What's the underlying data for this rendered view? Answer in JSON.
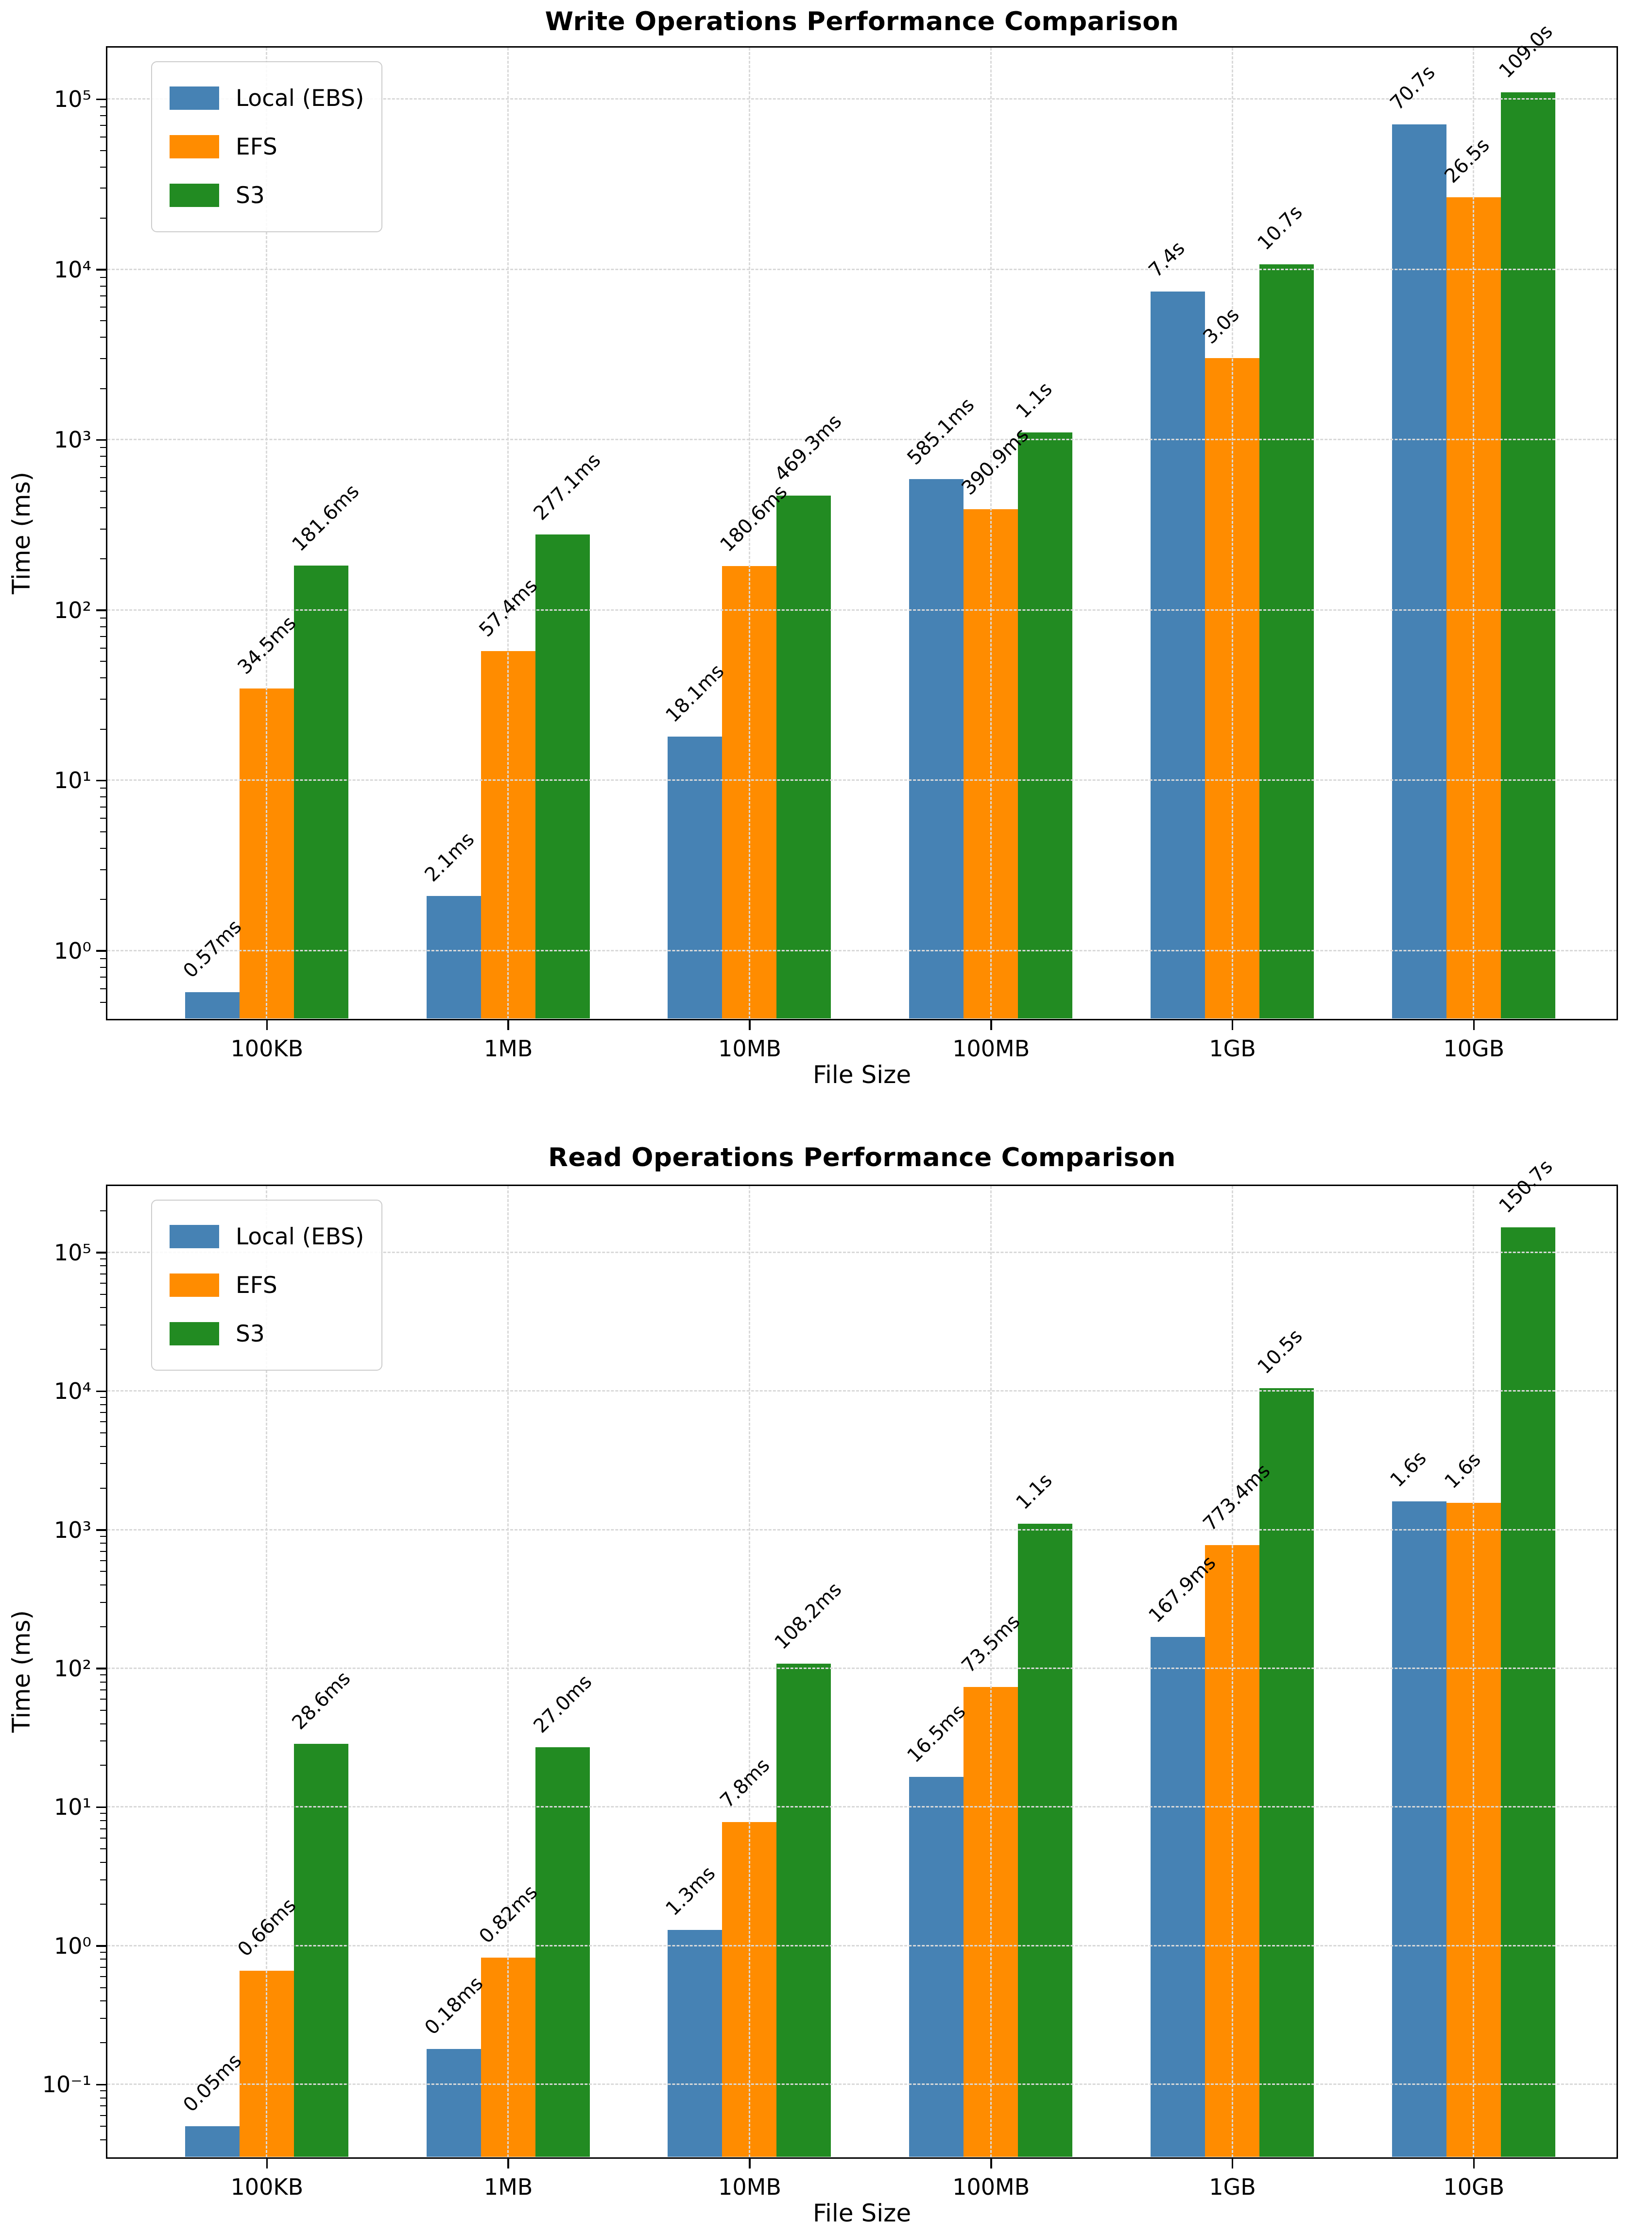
{
  "chart_data": [
    {
      "type": "bar",
      "title": "Write Operations Performance Comparison",
      "xlabel": "File Size",
      "ylabel": "Time (ms)",
      "yscale": "log",
      "grid": true,
      "legend_position": "upper left",
      "categories": [
        "100KB",
        "1MB",
        "10MB",
        "100MB",
        "1GB",
        "10GB"
      ],
      "series": [
        {
          "name": "Local (EBS)",
          "color": "#4682B4",
          "values": [
            0.57,
            2.1,
            18.1,
            585.1,
            7400,
            70700
          ],
          "labels": [
            "0.57ms",
            "2.1ms",
            "18.1ms",
            "585.1ms",
            "7.4s",
            "70.7s"
          ]
        },
        {
          "name": "EFS",
          "color": "#FF8C00",
          "values": [
            34.5,
            57.4,
            180.6,
            390.9,
            3000,
            26500
          ],
          "labels": [
            "34.5ms",
            "57.4ms",
            "180.6ms",
            "390.9ms",
            "3.0s",
            "26.5s"
          ]
        },
        {
          "name": "S3",
          "color": "#228B22",
          "values": [
            181.6,
            277.1,
            469.3,
            1100,
            10700,
            109000
          ],
          "labels": [
            "181.6ms",
            "277.1ms",
            "469.3ms",
            "1.1s",
            "10.7s",
            "109.0s"
          ]
        }
      ],
      "ylim": [
        0.4,
        200000
      ],
      "yticks": [
        1,
        10,
        100,
        1000,
        10000,
        100000
      ],
      "ytick_labels": [
        "10⁰",
        "10¹",
        "10²",
        "10³",
        "10⁴",
        "10⁵"
      ]
    },
    {
      "type": "bar",
      "title": "Read Operations Performance Comparison",
      "xlabel": "File Size",
      "ylabel": "Time (ms)",
      "yscale": "log",
      "grid": true,
      "legend_position": "upper left",
      "categories": [
        "100KB",
        "1MB",
        "10MB",
        "100MB",
        "1GB",
        "10GB"
      ],
      "series": [
        {
          "name": "Local (EBS)",
          "color": "#4682B4",
          "values": [
            0.05,
            0.18,
            1.3,
            16.5,
            167.9,
            1600
          ],
          "labels": [
            "0.05ms",
            "0.18ms",
            "1.3ms",
            "16.5ms",
            "167.9ms",
            "1.6s"
          ]
        },
        {
          "name": "EFS",
          "color": "#FF8C00",
          "values": [
            0.66,
            0.82,
            7.8,
            73.5,
            773.4,
            1560
          ],
          "labels": [
            "0.66ms",
            "0.82ms",
            "7.8ms",
            "73.5ms",
            "773.4ms",
            "1.6s"
          ]
        },
        {
          "name": "S3",
          "color": "#228B22",
          "values": [
            28.6,
            27.0,
            108.2,
            1100,
            10500,
            150700
          ],
          "labels": [
            "28.6ms",
            "27.0ms",
            "108.2ms",
            "1.1s",
            "10.5s",
            "150.7s"
          ]
        }
      ],
      "ylim": [
        0.03,
        300000
      ],
      "yticks": [
        0.1,
        1,
        10,
        100,
        1000,
        10000,
        100000
      ],
      "ytick_labels": [
        "10⁻¹",
        "10⁰",
        "10¹",
        "10²",
        "10³",
        "10⁴",
        "10⁵"
      ]
    }
  ]
}
